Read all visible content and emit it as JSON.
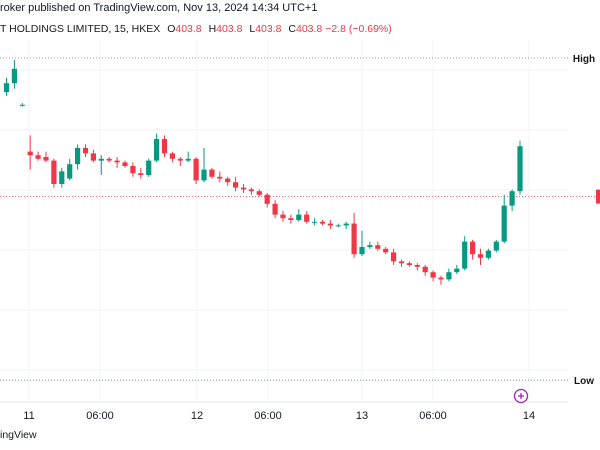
{
  "header": {
    "published_text": "roker published on TradingView.com, Nov 13, 2024 14:34 UTC+1"
  },
  "symbol_bar": {
    "title": "T HOLDINGS LIMITED, 15, HKEX",
    "open_label": "O",
    "open_value": "403.8",
    "high_label": "H",
    "high_value": "403.8",
    "low_label": "L",
    "low_value": "403.8",
    "close_label": "C",
    "close_value": "403.8",
    "change_text": "−2.8 (−0.69%)"
  },
  "footer": {
    "brand_text": "ingView"
  },
  "colors": {
    "up": "#089981",
    "down": "#f23645",
    "grid": "#f0f3fa",
    "axis_text": "#131722",
    "level_line": "#787b86",
    "text": "#131722"
  },
  "chart_data": {
    "type": "candlestick",
    "interval": "15",
    "x_labels": [
      "11",
      "06:00",
      "12",
      "06:00",
      "13",
      "06:00",
      "14"
    ],
    "level_labels": {
      "high": "High",
      "low": "Low"
    },
    "current_price_line": 403.8,
    "ylim": [
      392.5,
      412.5
    ],
    "high_level": 411.5,
    "low_level": 393.6,
    "candles": [
      [
        409.6,
        410.4,
        409.4,
        410.1
      ],
      [
        410.1,
        411.4,
        409.8,
        410.9
      ],
      [
        408.9,
        409.0,
        408.8,
        408.9
      ],
      [
        406.3,
        407.2,
        405.3,
        406.1
      ],
      [
        406.1,
        406.3,
        405.8,
        405.9
      ],
      [
        406.0,
        406.3,
        405.7,
        405.8
      ],
      [
        405.8,
        405.9,
        404.3,
        404.5
      ],
      [
        404.5,
        405.4,
        404.3,
        405.2
      ],
      [
        404.8,
        405.9,
        404.7,
        405.6
      ],
      [
        405.6,
        406.7,
        405.3,
        406.5
      ],
      [
        406.5,
        406.7,
        406.0,
        406.2
      ],
      [
        406.2,
        406.4,
        405.7,
        405.8
      ],
      [
        405.8,
        406.1,
        405.0,
        405.9
      ],
      [
        405.9,
        406.0,
        405.7,
        405.8
      ],
      [
        405.8,
        406.0,
        405.4,
        405.7
      ],
      [
        405.7,
        405.8,
        405.4,
        405.5
      ],
      [
        405.5,
        405.7,
        404.9,
        405.1
      ],
      [
        405.1,
        405.4,
        404.8,
        405.0
      ],
      [
        405.0,
        405.9,
        404.9,
        405.8
      ],
      [
        405.8,
        407.3,
        405.7,
        407.0
      ],
      [
        407.0,
        407.2,
        406.0,
        406.2
      ],
      [
        406.2,
        406.3,
        405.7,
        405.9
      ],
      [
        405.9,
        406.0,
        405.5,
        405.8
      ],
      [
        405.8,
        406.3,
        405.7,
        405.9
      ],
      [
        405.9,
        406.0,
        404.5,
        404.7
      ],
      [
        404.7,
        406.5,
        404.6,
        405.3
      ],
      [
        405.3,
        405.4,
        404.8,
        404.9
      ],
      [
        404.9,
        405.2,
        404.6,
        404.8
      ],
      [
        404.8,
        404.9,
        404.4,
        404.6
      ],
      [
        404.6,
        404.9,
        404.1,
        404.3
      ],
      [
        404.3,
        404.5,
        404.0,
        404.2
      ],
      [
        404.2,
        404.3,
        403.9,
        404.1
      ],
      [
        404.1,
        404.2,
        403.8,
        403.9
      ],
      [
        403.9,
        404.0,
        403.2,
        403.4
      ],
      [
        403.4,
        403.6,
        402.6,
        402.8
      ],
      [
        402.8,
        403.0,
        402.4,
        402.6
      ],
      [
        402.6,
        402.8,
        402.3,
        402.5
      ],
      [
        402.5,
        403.1,
        402.4,
        402.8
      ],
      [
        402.8,
        403.0,
        402.3,
        402.4
      ],
      [
        402.4,
        402.6,
        402.2,
        402.4
      ],
      [
        402.4,
        402.5,
        402.2,
        402.3
      ],
      [
        402.3,
        402.5,
        402.0,
        402.2
      ],
      [
        402.2,
        402.3,
        402.1,
        402.2
      ],
      [
        402.2,
        402.4,
        402.0,
        402.3
      ],
      [
        402.3,
        402.9,
        400.4,
        400.6
      ],
      [
        400.6,
        401.9,
        400.5,
        401.0
      ],
      [
        401.0,
        401.3,
        400.9,
        401.1
      ],
      [
        401.1,
        401.3,
        400.8,
        400.9
      ],
      [
        400.9,
        401.0,
        400.6,
        400.7
      ],
      [
        400.7,
        400.9,
        400.0,
        400.2
      ],
      [
        400.2,
        400.3,
        399.9,
        400.1
      ],
      [
        400.1,
        400.2,
        399.9,
        400.0
      ],
      [
        400.0,
        400.1,
        399.7,
        399.9
      ],
      [
        399.9,
        400.0,
        399.4,
        399.6
      ],
      [
        399.6,
        399.7,
        399.1,
        399.3
      ],
      [
        399.3,
        399.4,
        398.9,
        399.2
      ],
      [
        399.2,
        399.8,
        399.1,
        399.6
      ],
      [
        399.6,
        400.0,
        399.5,
        399.8
      ],
      [
        399.8,
        401.6,
        399.7,
        401.3
      ],
      [
        401.3,
        401.4,
        400.3,
        400.6
      ],
      [
        400.6,
        400.9,
        400.0,
        400.4
      ],
      [
        400.4,
        400.9,
        400.3,
        400.8
      ],
      [
        400.8,
        401.4,
        400.7,
        401.3
      ],
      [
        401.3,
        403.9,
        401.2,
        403.3
      ],
      [
        403.3,
        404.2,
        403.0,
        404.1
      ],
      [
        404.1,
        406.9,
        403.9,
        406.6
      ]
    ]
  }
}
